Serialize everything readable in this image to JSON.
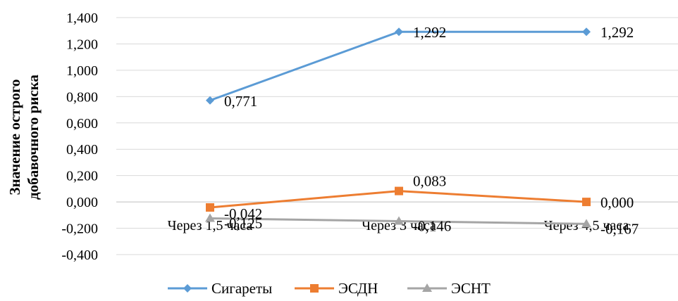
{
  "chart_data": {
    "type": "line",
    "title": "",
    "xlabel": "",
    "ylabel_lines": [
      "Значение острого",
      "добавочного риска"
    ],
    "categories": [
      "Через 1,5 часа",
      "Через 3 часа",
      "Через 4,5 часа"
    ],
    "ylim": [
      -0.4,
      1.4
    ],
    "yticks": [
      -0.4,
      -0.2,
      0.0,
      0.2,
      0.4,
      0.6,
      0.8,
      1.0,
      1.2,
      1.4
    ],
    "ytick_labels": [
      "-0,400",
      "-0,200",
      "0,000",
      "0,200",
      "0,400",
      "0,600",
      "0,800",
      "1,000",
      "1,200",
      "1,400"
    ],
    "grid": true,
    "legend_position": "bottom",
    "series": [
      {
        "name": "Сигареты",
        "color": "#5b9bd5",
        "marker": "diamond",
        "values": [
          0.771,
          1.292,
          1.292
        ],
        "labels": [
          "0,771",
          "1,292",
          "1,292"
        ]
      },
      {
        "name": "ЭСДН",
        "color": "#ed7d31",
        "marker": "square",
        "values": [
          -0.042,
          0.083,
          0.0
        ],
        "labels": [
          "-0,042",
          "0,083",
          "0,000"
        ]
      },
      {
        "name": "ЭСНТ",
        "color": "#a5a5a5",
        "marker": "triangle",
        "values": [
          -0.125,
          -0.146,
          -0.167
        ],
        "labels": [
          "-0,125",
          "-0,146",
          "-0,167"
        ]
      }
    ]
  }
}
